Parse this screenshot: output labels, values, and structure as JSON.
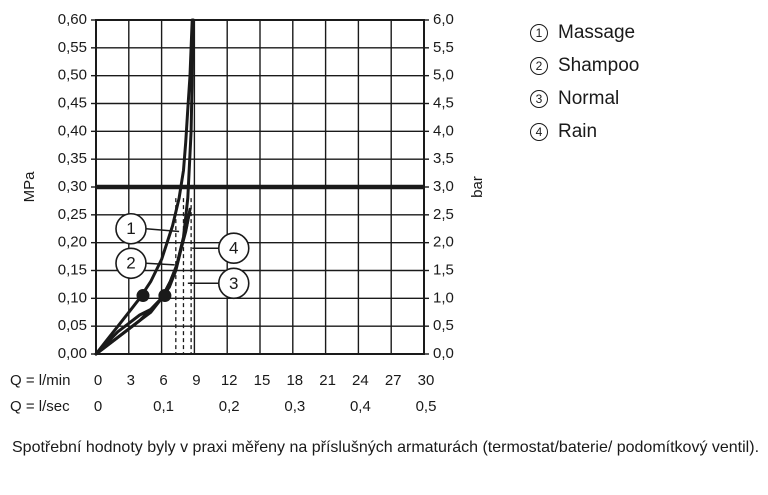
{
  "chart_data": {
    "type": "line",
    "y_left_label": "MPa",
    "y_right_label": "bar",
    "y_left_ticks": [
      "0,00",
      "0,05",
      "0,10",
      "0,15",
      "0,20",
      "0,25",
      "0,30",
      "0,35",
      "0,40",
      "0,45",
      "0,50",
      "0,55",
      "0,60"
    ],
    "y_right_ticks": [
      "0,0",
      "0,5",
      "1,0",
      "1,5",
      "2,0",
      "2,5",
      "3,0",
      "3,5",
      "4,0",
      "4,5",
      "5,0",
      "5,5",
      "6,0"
    ],
    "ylim_mpa": [
      0,
      0.6
    ],
    "xlim_lmin": [
      0,
      30
    ],
    "x_row1_label": "Q = l/min",
    "x_row1_ticks": [
      "0",
      "3",
      "6",
      "9",
      "12",
      "15",
      "18",
      "21",
      "24",
      "27",
      "30"
    ],
    "x_row2_label": "Q = l/sec",
    "x_row2_ticks": [
      "0",
      "0,1",
      "0,2",
      "0,3",
      "0,4",
      "0,5"
    ],
    "reference_line_mpa": 0.3,
    "series": [
      {
        "name": "Massage",
        "number": "1",
        "x": [
          0,
          1,
          2,
          3,
          4,
          5,
          6,
          7,
          7.6,
          8,
          8.2,
          8.4,
          8.6,
          8.8
        ],
        "y": [
          0,
          0.025,
          0.05,
          0.075,
          0.1,
          0.13,
          0.17,
          0.23,
          0.28,
          0.33,
          0.38,
          0.44,
          0.5,
          0.6
        ]
      },
      {
        "name": "Shampoo",
        "number": "2",
        "x": [
          0,
          2,
          4,
          5,
          6,
          6.8,
          7.4,
          8,
          8.4,
          8.7,
          8.9
        ],
        "y": [
          0,
          0.04,
          0.07,
          0.08,
          0.1,
          0.13,
          0.16,
          0.21,
          0.28,
          0.4,
          0.6
        ]
      },
      {
        "name": "Normal",
        "number": "3",
        "x": [
          0,
          2,
          4,
          5,
          6,
          6.7,
          7.3,
          7.8,
          8.2,
          8.5
        ],
        "y": [
          0,
          0.03,
          0.06,
          0.075,
          0.1,
          0.12,
          0.15,
          0.19,
          0.22,
          0.25
        ]
      },
      {
        "name": "Rain",
        "number": "4",
        "x": [
          0,
          2,
          4,
          5,
          6,
          6.8,
          7.4,
          7.9,
          8.3,
          8.6
        ],
        "y": [
          0,
          0.03,
          0.06,
          0.08,
          0.1,
          0.13,
          0.16,
          0.2,
          0.23,
          0.26
        ]
      }
    ],
    "markers": [
      {
        "x": 4.3,
        "y": 0.105
      },
      {
        "x": 6.3,
        "y": 0.105
      }
    ],
    "dashed_drops_lmin": [
      7.3,
      8.0,
      8.7
    ],
    "callouts": [
      {
        "label": "1",
        "x_lmin": 3.2,
        "y_mpa": 0.225,
        "target_x_lmin": 7.6,
        "target_y_mpa": 0.22
      },
      {
        "label": "2",
        "x_lmin": 3.2,
        "y_mpa": 0.163,
        "target_x_lmin": 7.2,
        "target_y_mpa": 0.16
      },
      {
        "label": "4",
        "x_lmin": 12.6,
        "y_mpa": 0.19,
        "target_x_lmin": 8.8,
        "target_y_mpa": 0.19
      },
      {
        "label": "3",
        "x_lmin": 12.6,
        "y_mpa": 0.127,
        "target_x_lmin": 8.4,
        "target_y_mpa": 0.127
      }
    ]
  },
  "legend": [
    {
      "marker": "1",
      "label": "Massage"
    },
    {
      "marker": "2",
      "label": "Shampoo"
    },
    {
      "marker": "3",
      "label": "Normal"
    },
    {
      "marker": "4",
      "label": "Rain"
    }
  ],
  "footnote": "Spotřební hodnoty byly v praxi měřeny na příslušných armaturách (termostat/baterie/ podomítkový ventil)."
}
